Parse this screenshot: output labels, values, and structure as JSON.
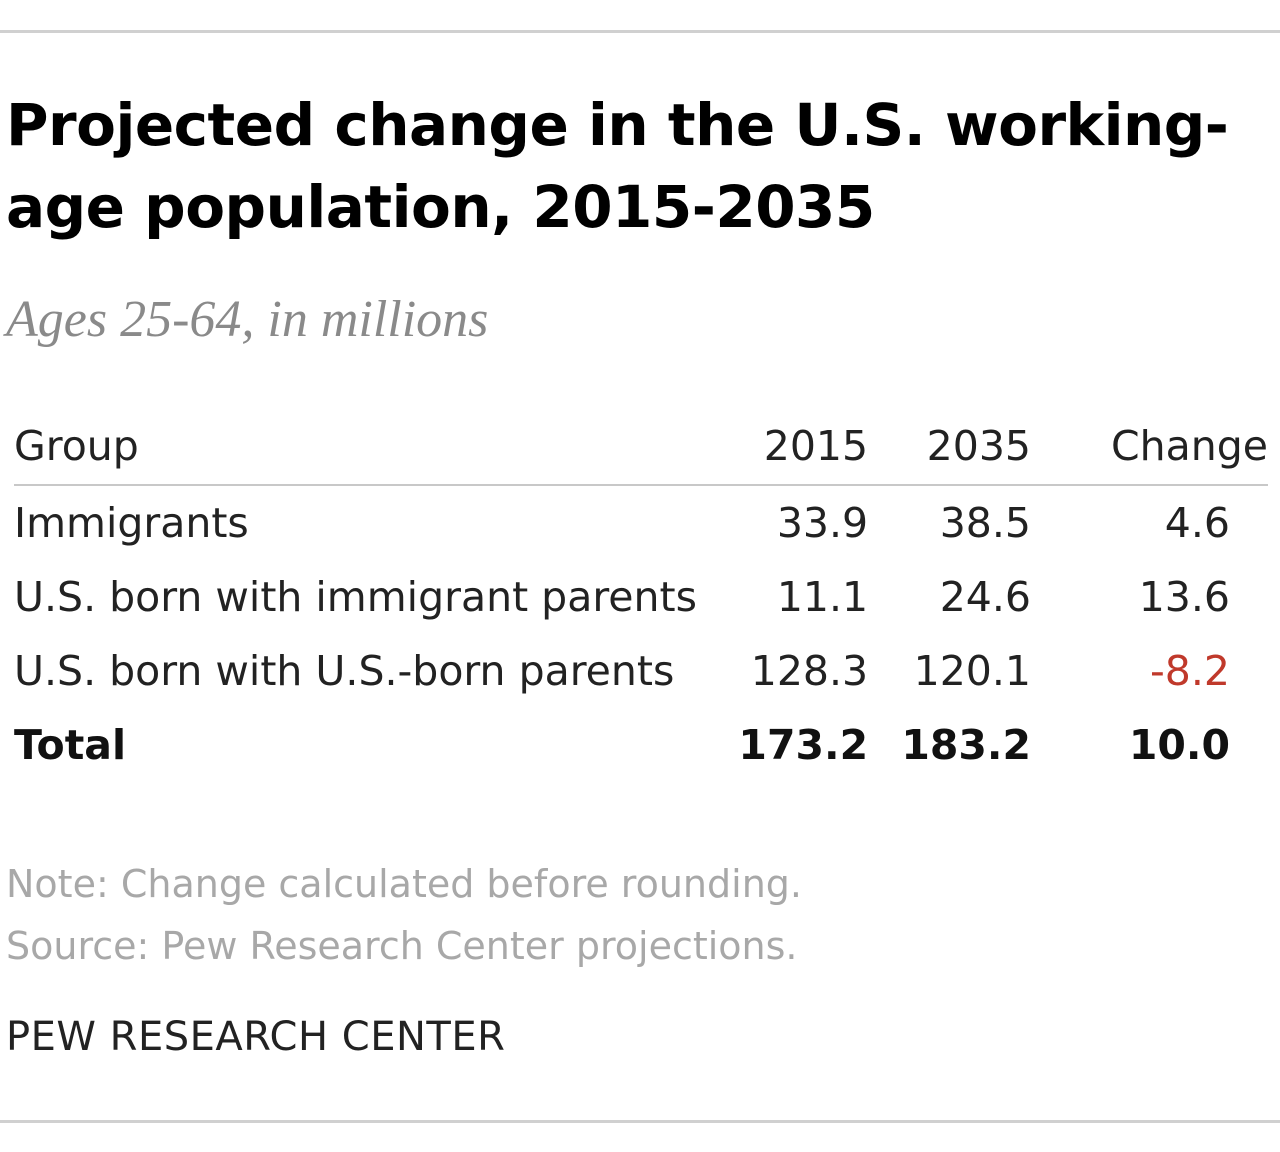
{
  "chart_data": {
    "type": "table",
    "title": "Projected change in the U.S. working-age population, 2015-2035",
    "subtitle": "Ages 25-64, in millions",
    "columns": [
      "Group",
      "2015",
      "2035",
      "Change"
    ],
    "rows": [
      {
        "group": "Immigrants",
        "y2015": "33.9",
        "y2035": "38.5",
        "change": "4.6"
      },
      {
        "group": "U.S. born with immigrant parents",
        "y2015": "11.1",
        "y2035": "24.6",
        "change": "13.6"
      },
      {
        "group": "U.S. born with U.S.-born parents",
        "y2015": "128.3",
        "y2035": "120.1",
        "change": "-8.2"
      },
      {
        "group": "Total",
        "y2015": "173.2",
        "y2035": "183.2",
        "change": "10.0"
      }
    ],
    "negative_color": "#c0392b",
    "note": "Note: Change calculated before rounding.",
    "source": "Source: Pew Research Center projections.",
    "brand": "PEW RESEARCH CENTER"
  }
}
